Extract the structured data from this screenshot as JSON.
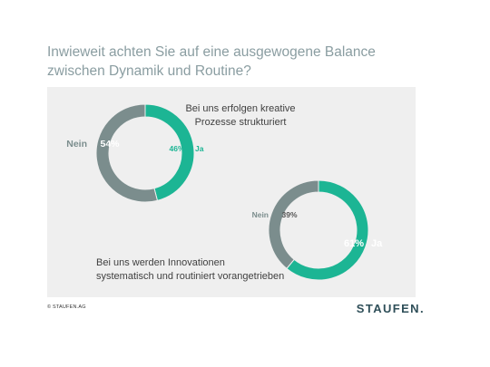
{
  "title_lines": [
    "Inwieweit achten Sie auf eine ausgewogene Balance",
    "zwischen Dynamik und Routine?"
  ],
  "copyright": "© STAUFEN.AG",
  "logo_text": "STAUFEN.",
  "colors": {
    "ja": "#1cb594",
    "nein": "#7b8d8d",
    "title": "#8a9da1",
    "panel": "#efefef",
    "logo": "#2f4f59"
  },
  "chart_data": [
    {
      "type": "pie",
      "variant": "donut",
      "caption_lines": [
        "Bei uns erfolgen kreative",
        "Prozesse strukturiert"
      ],
      "slices": [
        {
          "name": "Ja",
          "value": 46,
          "label": "46%",
          "color": "#1cb594"
        },
        {
          "name": "Nein",
          "value": 54,
          "label": "54%",
          "color": "#7b8d8d"
        }
      ]
    },
    {
      "type": "pie",
      "variant": "donut",
      "caption_lines": [
        "Bei uns werden Innovationen",
        "systematisch und routiniert vorangetrieben"
      ],
      "slices": [
        {
          "name": "Ja",
          "value": 61,
          "label": "61%",
          "color": "#1cb594"
        },
        {
          "name": "Nein",
          "value": 39,
          "label": "39%",
          "color": "#7b8d8d"
        }
      ]
    }
  ]
}
